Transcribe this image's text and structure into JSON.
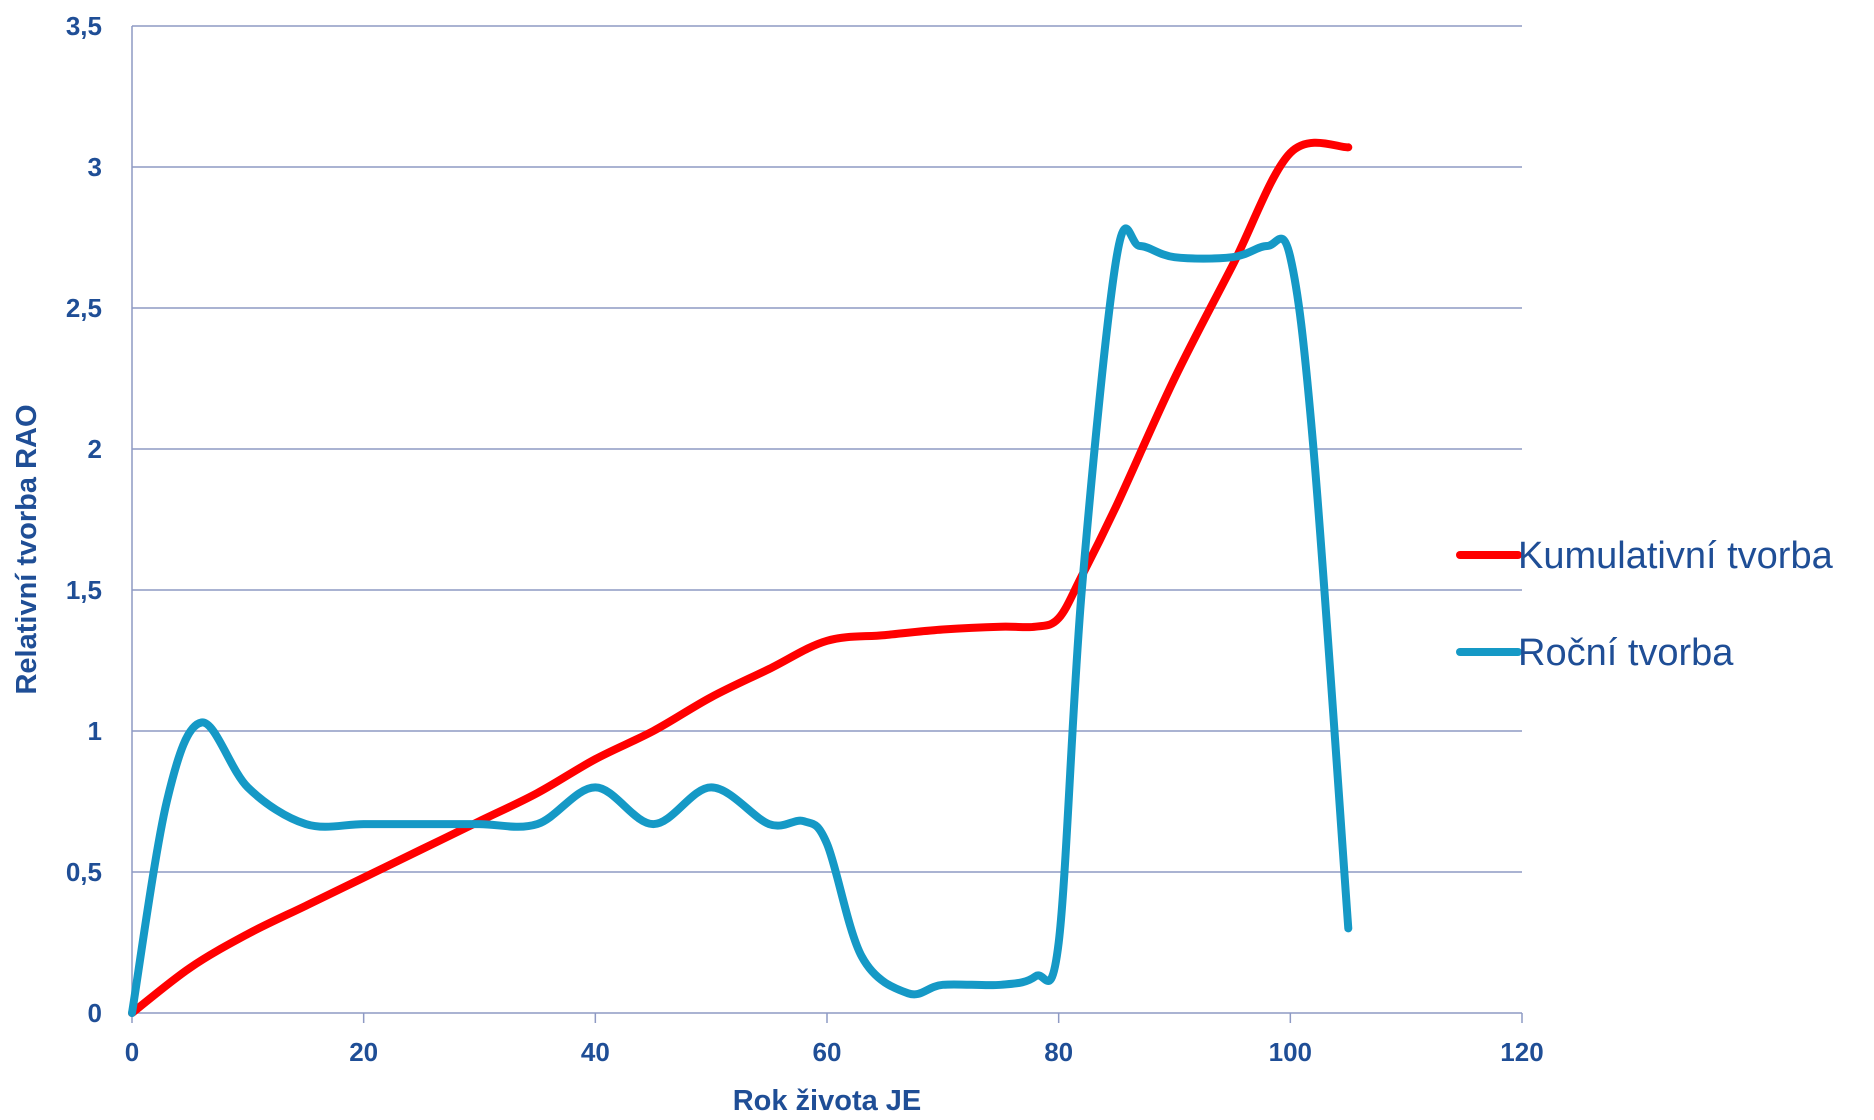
{
  "chart_data": {
    "type": "line",
    "title": "",
    "xlabel": "Rok života JE",
    "ylabel": "Relativní tvorba RAO",
    "xlim": [
      0,
      120
    ],
    "ylim": [
      0,
      3.5
    ],
    "x_ticks": [
      "0",
      "20",
      "40",
      "60",
      "80",
      "100",
      "120"
    ],
    "y_ticks": [
      "0",
      "0,5",
      "1",
      "1,5",
      "2",
      "2,5",
      "3",
      "3,5"
    ],
    "grid": "horizontal",
    "legend_position": "right",
    "colors": {
      "axis_text": "#1F4E96",
      "grid": "#8E9AC4",
      "kumulativni": "#FF0000",
      "rocni": "#1599C6"
    },
    "series": [
      {
        "name": "Kumulativní tvorba",
        "x": [
          0,
          5,
          10,
          15,
          20,
          25,
          30,
          35,
          40,
          45,
          50,
          55,
          60,
          65,
          70,
          75,
          78,
          80,
          82,
          85,
          90,
          95,
          100,
          105
        ],
        "y": [
          0,
          0.16,
          0.28,
          0.38,
          0.48,
          0.58,
          0.68,
          0.78,
          0.9,
          1.0,
          1.12,
          1.22,
          1.32,
          1.34,
          1.36,
          1.37,
          1.37,
          1.4,
          1.55,
          1.8,
          2.25,
          2.65,
          3.05,
          3.07
        ]
      },
      {
        "name": "Roční tvorba",
        "x": [
          0,
          3,
          6,
          10,
          15,
          20,
          25,
          30,
          35,
          40,
          45,
          50,
          55,
          58,
          60,
          63,
          67,
          70,
          75,
          78,
          80,
          82,
          85,
          87,
          90,
          95,
          98,
          100,
          102,
          105
        ],
        "y": [
          0,
          0.75,
          1.03,
          0.8,
          0.67,
          0.67,
          0.67,
          0.67,
          0.67,
          0.8,
          0.67,
          0.8,
          0.67,
          0.68,
          0.6,
          0.2,
          0.07,
          0.1,
          0.1,
          0.13,
          0.25,
          1.5,
          2.68,
          2.72,
          2.68,
          2.68,
          2.72,
          2.68,
          2.0,
          0.3
        ]
      }
    ]
  }
}
